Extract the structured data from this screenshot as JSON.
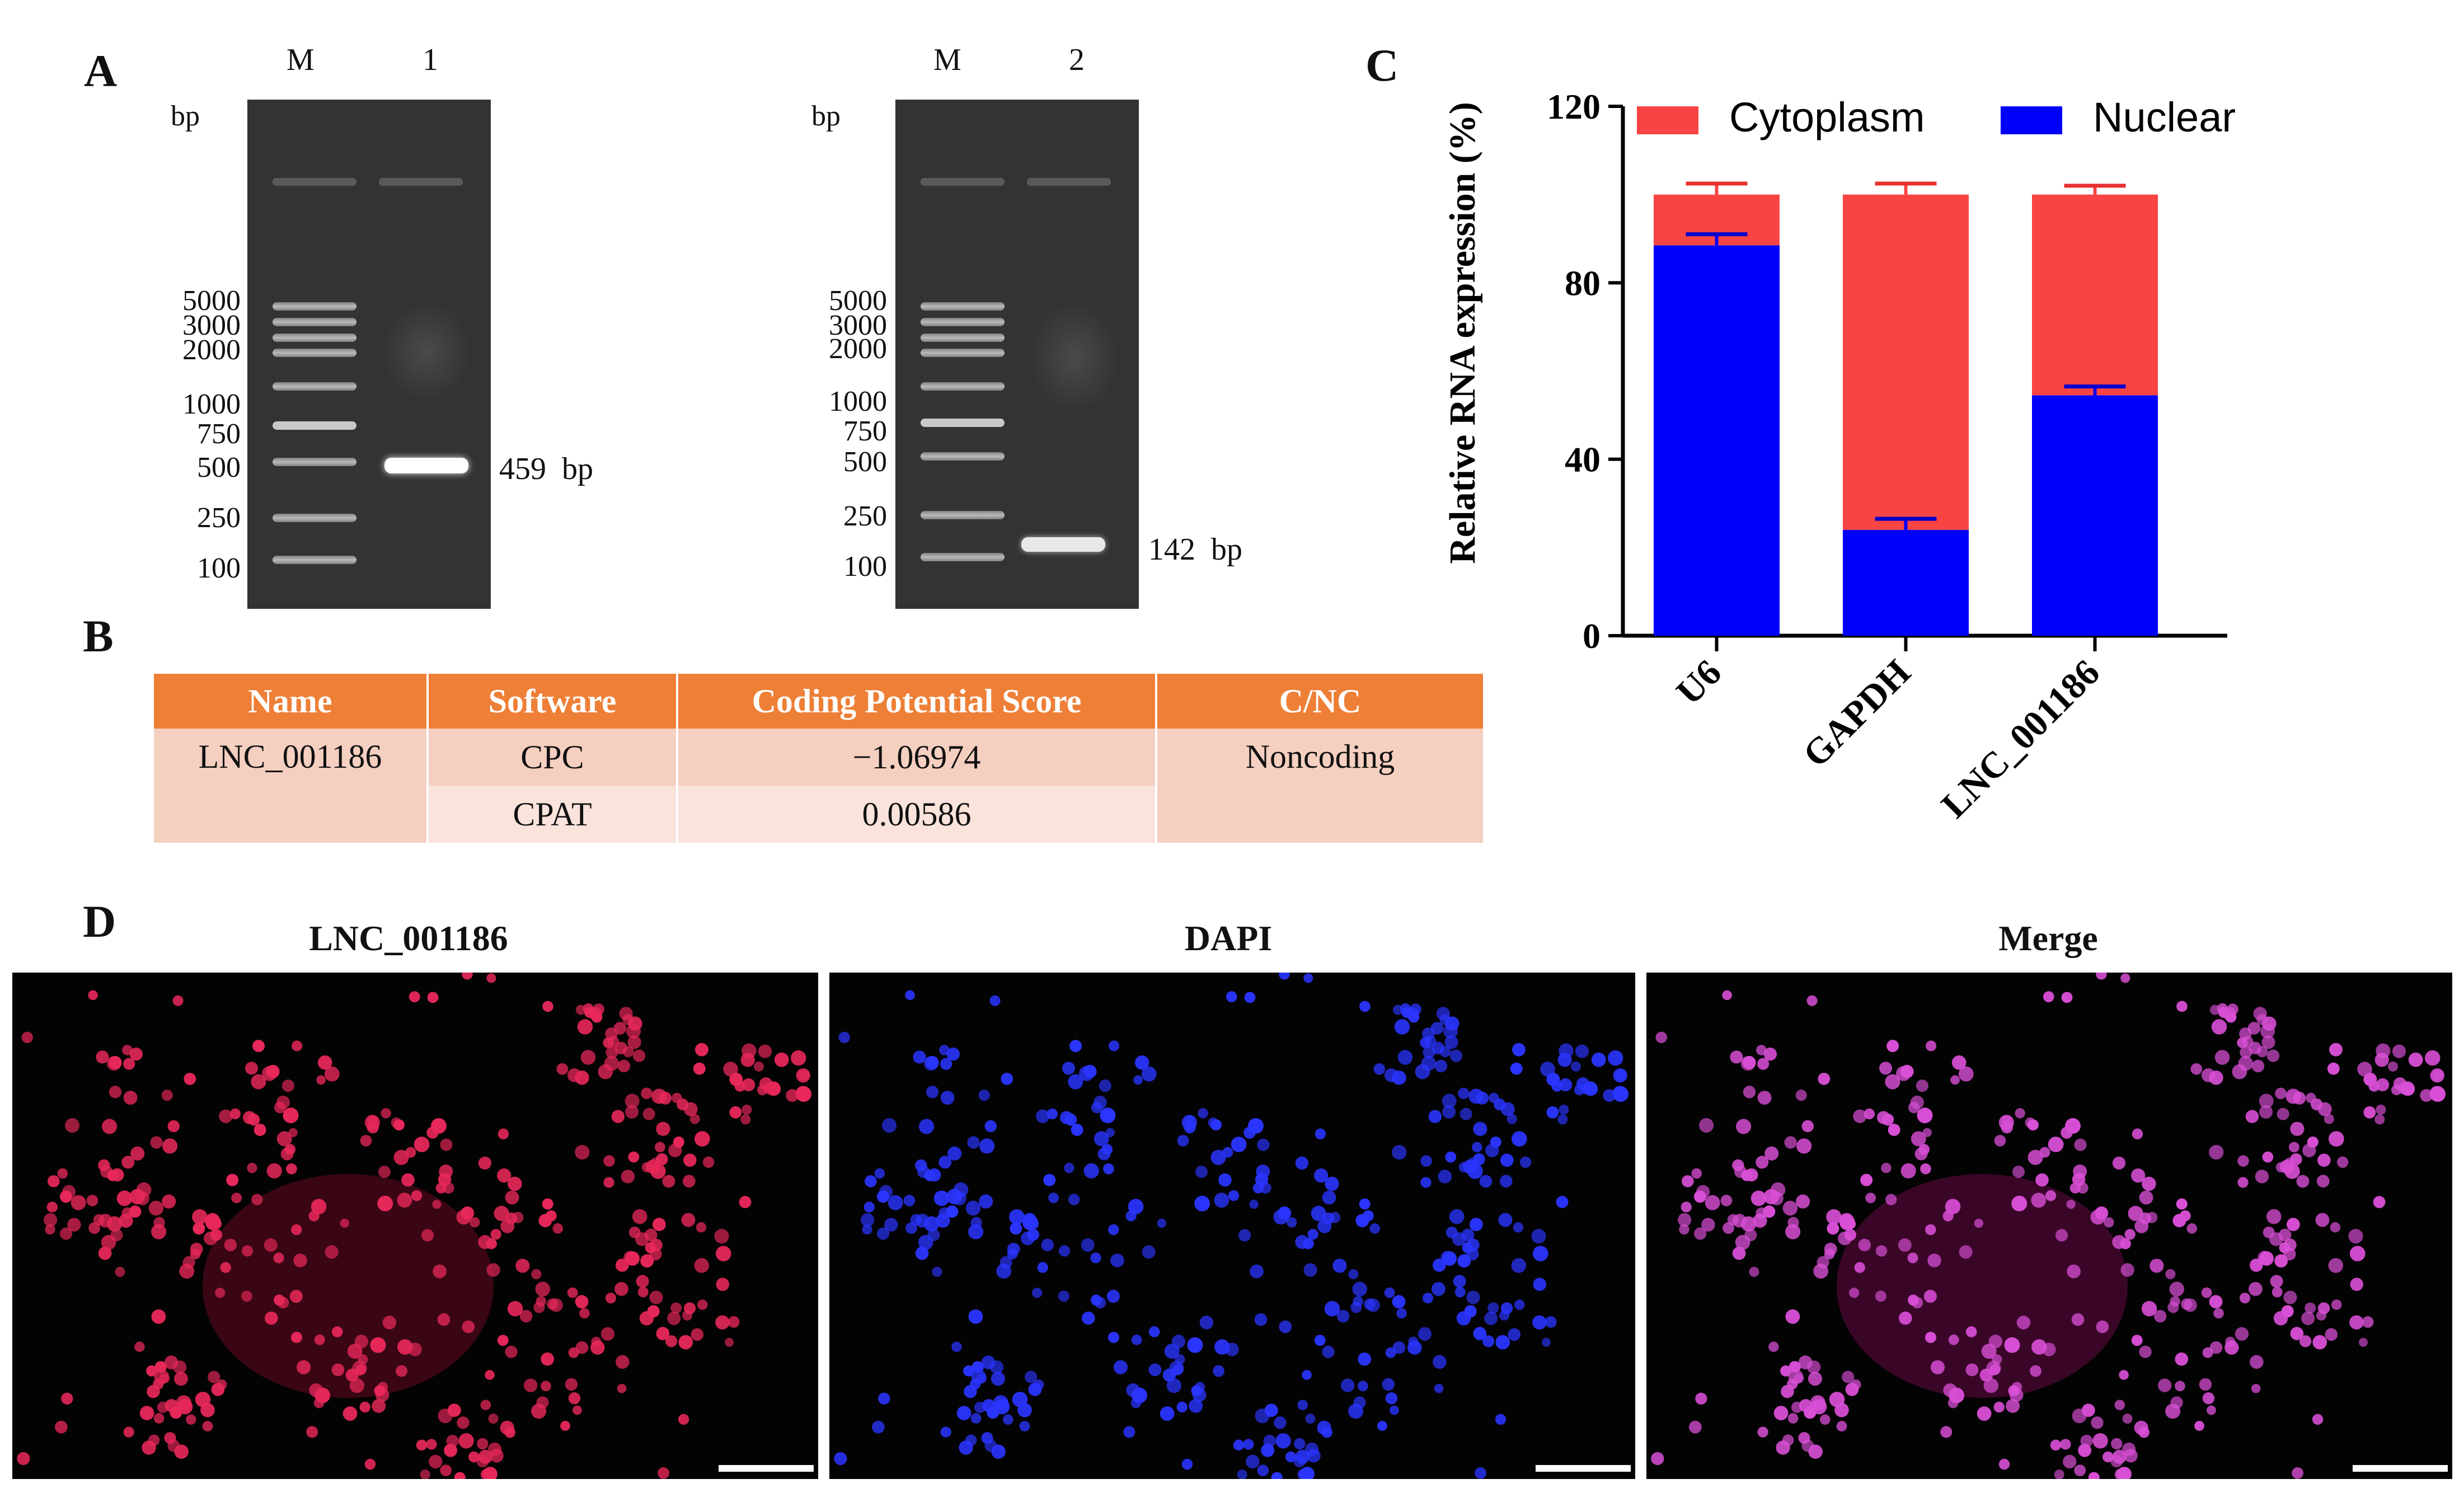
{
  "panels": {
    "a": "A",
    "b": "B",
    "c": "C",
    "d": "D"
  },
  "gel_left": {
    "unit": "bp",
    "lane_m": "M",
    "lane_sample": "1",
    "ladder": [
      "5000",
      "3000",
      "2000",
      "1000",
      "750",
      "500",
      "250",
      "100"
    ],
    "band_label": "459  bp"
  },
  "gel_right": {
    "unit": "bp",
    "lane_m": "M",
    "lane_sample": "2",
    "ladder": [
      "5000",
      "3000",
      "2000",
      "1000",
      "750",
      "500",
      "250",
      "100"
    ],
    "band_label": "142  bp"
  },
  "table": {
    "headers": [
      "Name",
      "Software",
      "Coding Potential Score",
      "C/NC"
    ],
    "name": "LNC_001186",
    "rows": [
      {
        "software": "CPC",
        "score": "−1.06974"
      },
      {
        "software": "CPAT",
        "score": "0.00586"
      }
    ],
    "class": "Noncoding"
  },
  "chart_data": {
    "type": "bar",
    "stacked": true,
    "title": "",
    "ylabel": "Relative RNA expression (%)",
    "xlabel": "",
    "ylim": [
      0,
      120
    ],
    "yticks": [
      0,
      40,
      80,
      120
    ],
    "categories": [
      "U6",
      "GAPDH",
      "LNC_001186"
    ],
    "series": [
      {
        "name": "Nuclear",
        "color": "#0000fa",
        "values": [
          88.5,
          24,
          54.5
        ],
        "errors": [
          2.5,
          2.5,
          2
        ]
      },
      {
        "name": "Cytoplasm",
        "color": "#f94444",
        "values": [
          11.5,
          76,
          45.5
        ],
        "errors": [
          2.5,
          2.5,
          2
        ]
      }
    ],
    "legend": "top"
  },
  "micro": {
    "titles": [
      "LNC_001186",
      "DAPI",
      "Merge"
    ],
    "colors": [
      "#e8285a",
      "#2a35ff",
      "#d94fd6"
    ]
  }
}
